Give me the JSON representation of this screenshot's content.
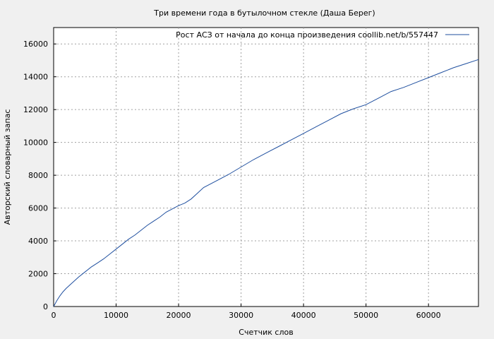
{
  "chart_data": {
    "type": "line",
    "title": "Три времени года в бутылочном стекле (Даша Берег)",
    "xlabel": "Счетчик слов",
    "ylabel": "Авторский словарный запас",
    "xlim": [
      0,
      68000
    ],
    "ylim": [
      0,
      17000
    ],
    "x_ticks": [
      0,
      10000,
      20000,
      30000,
      40000,
      50000,
      60000
    ],
    "y_ticks": [
      0,
      2000,
      4000,
      6000,
      8000,
      10000,
      12000,
      14000,
      16000
    ],
    "grid": true,
    "legend_position": "top-right",
    "colors": {
      "line": "#1f4f9f",
      "plot_bg": "#ffffff",
      "page_bg": "#f0f0f0"
    },
    "series": [
      {
        "name": "Рост АСЗ от начала до конца произведения  coollib.net/b/557447",
        "x": [
          0,
          500,
          1000,
          1500,
          2000,
          3000,
          4000,
          5000,
          6000,
          7000,
          8000,
          9000,
          10000,
          11000,
          12000,
          13000,
          14000,
          15000,
          16000,
          17000,
          18000,
          19000,
          20000,
          21000,
          22000,
          23000,
          24000,
          26000,
          28000,
          30000,
          32000,
          34000,
          36000,
          38000,
          40000,
          42000,
          44000,
          46000,
          48000,
          50000,
          52000,
          54000,
          56000,
          58000,
          60000,
          62000,
          64000,
          66000,
          68000
        ],
        "y": [
          0,
          350,
          650,
          900,
          1100,
          1450,
          1800,
          2100,
          2400,
          2650,
          2900,
          3200,
          3500,
          3800,
          4100,
          4350,
          4650,
          4950,
          5200,
          5450,
          5750,
          5950,
          6150,
          6300,
          6550,
          6900,
          7250,
          7650,
          8050,
          8500,
          8950,
          9350,
          9750,
          10150,
          10550,
          10950,
          11350,
          11750,
          12050,
          12300,
          12700,
          13100,
          13350,
          13650,
          13950,
          14250,
          14550,
          14800,
          15050
        ]
      }
    ]
  }
}
